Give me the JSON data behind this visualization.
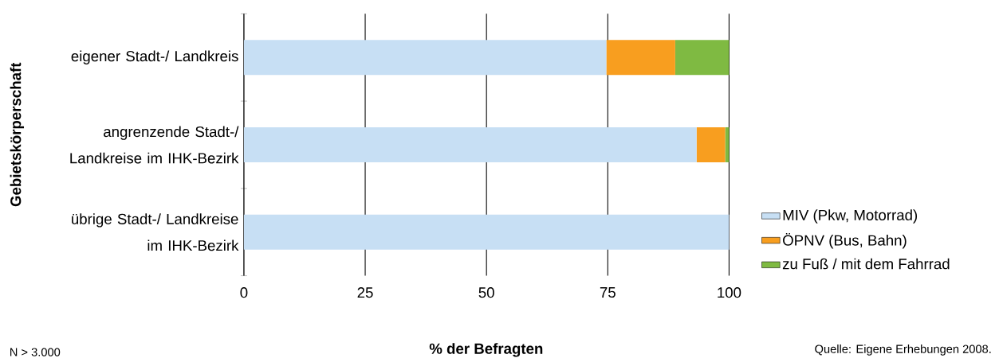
{
  "chart_data": {
    "type": "bar",
    "orientation": "horizontal",
    "stacked": true,
    "categories": [
      "eigener Stadt-/ Landkreis",
      "angrenzende Stadt-/ Landkreise im IHK-Bezirk",
      "übrige Stadt-/ Landkreise im IHK-Bezirk"
    ],
    "series": [
      {
        "name": "MIV (Pkw, Motorrad)",
        "color": "#c7dff4",
        "values": [
          74.7,
          93.3,
          100
        ]
      },
      {
        "name": "ÖPNV (Bus, Bahn)",
        "color": "#f89e1f",
        "values": [
          14.2,
          5.9,
          0
        ]
      },
      {
        "name": "zu Fuß / mit dem Fahrrad",
        "color": "#7fba42",
        "values": [
          11.1,
          0.8,
          0
        ]
      }
    ],
    "xlim": [
      0,
      100
    ],
    "xticks": [
      0,
      25,
      50,
      75,
      100
    ],
    "grid": "x",
    "legend": "right",
    "xlabel": "% der Befragten",
    "ylabel": "Gebietskörperschaft",
    "annotations": [
      "N > 3.000",
      "Quelle: Eigene Erhebungen 2008."
    ]
  }
}
